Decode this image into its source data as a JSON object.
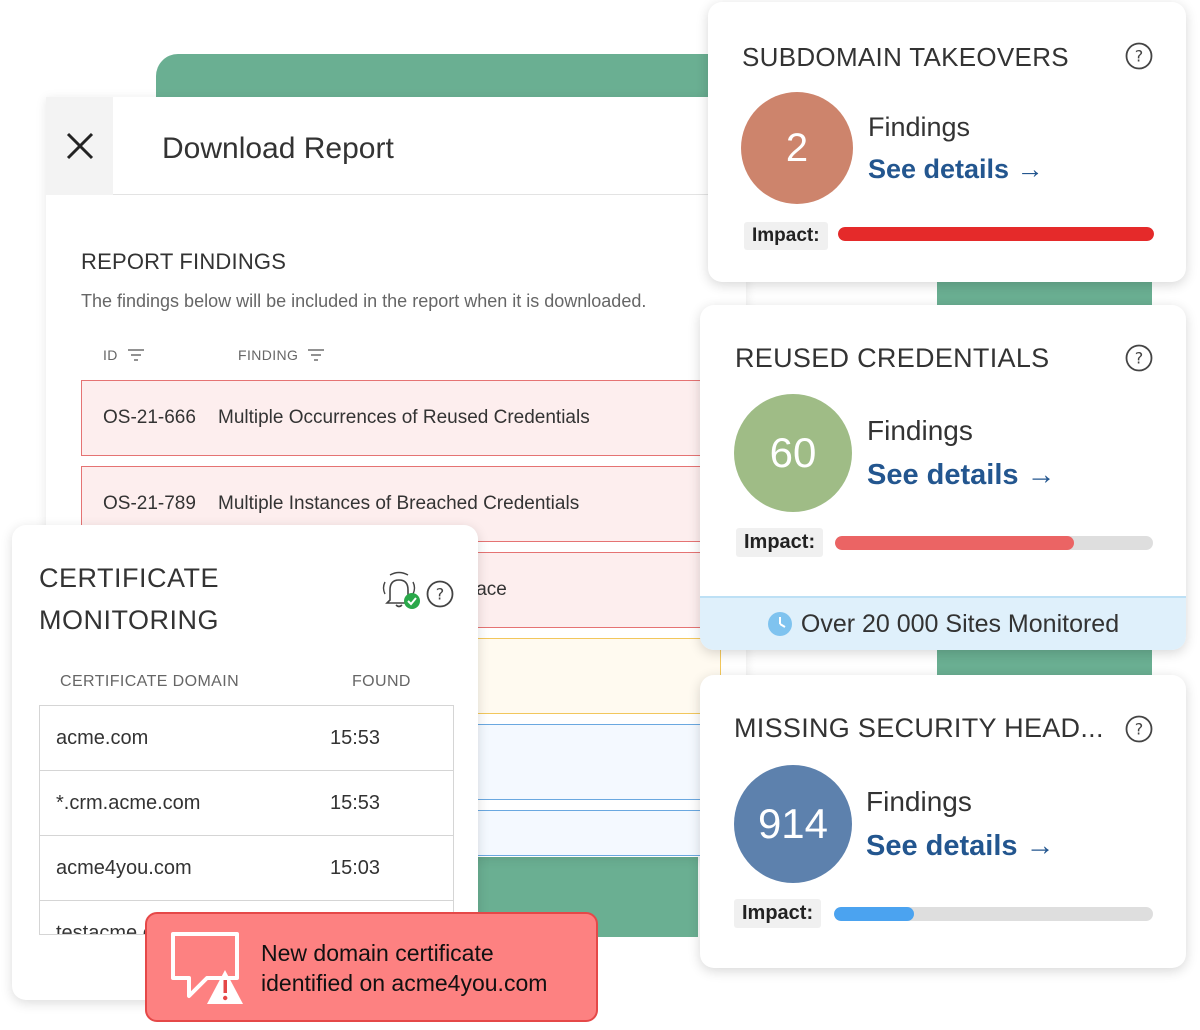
{
  "report": {
    "title": "Download Report",
    "section_title": "REPORT FINDINGS",
    "section_description": "The findings below will be included in the report when it is downloaded.",
    "columns": {
      "id": "ID",
      "finding": "FINDING"
    },
    "rows": [
      {
        "id": "OS-21-666",
        "finding": "Multiple Occurrences of Reused Credentials"
      },
      {
        "id": "OS-21-789",
        "finding": "Multiple Instances of Breached Credentials"
      },
      {
        "id": "",
        "finding": "lace"
      }
    ]
  },
  "cards": {
    "subdomain": {
      "title": "SUBDOMAIN TAKEOVERS",
      "count": "2",
      "findings_label": "Findings",
      "see_details": "See details →",
      "impact_label": "Impact:",
      "impact_level": 1.0,
      "circle_color": "#cd846c",
      "bar_color": "#e52a2a"
    },
    "reused": {
      "title": "REUSED CREDENTIALS",
      "count": "60",
      "findings_label": "Findings",
      "see_details": "See details →",
      "impact_label": "Impact:",
      "impact_level": 0.75,
      "circle_color": "#9fbc86",
      "bar_color": "#eb6464",
      "banner": "Over 20 000 Sites Monitored"
    },
    "headers": {
      "title": "MISSING SECURITY HEAD...",
      "count": "914",
      "findings_label": "Findings",
      "see_details": "See details →",
      "impact_label": "Impact:",
      "impact_level": 0.25,
      "circle_color": "#5d81ad",
      "bar_color": "#4ba3f0"
    }
  },
  "cert": {
    "title_line1": "CERTIFICATE",
    "title_line2": "MONITORING",
    "col_domain": "CERTIFICATE DOMAIN",
    "col_found": "FOUND",
    "rows": [
      {
        "domain": "acme.com",
        "found": "15:53"
      },
      {
        "domain": "*.crm.acme.com",
        "found": "15:53"
      },
      {
        "domain": "acme4you.com",
        "found": "15:03"
      },
      {
        "domain": "testacme.com",
        "found": ""
      }
    ]
  },
  "toast": {
    "line1": "New domain certificate",
    "line2": "identified on acme4you.com"
  },
  "colors": {
    "green": "#6aaf92",
    "link_blue": "#23568f",
    "toast_bg": "#fd8181"
  }
}
